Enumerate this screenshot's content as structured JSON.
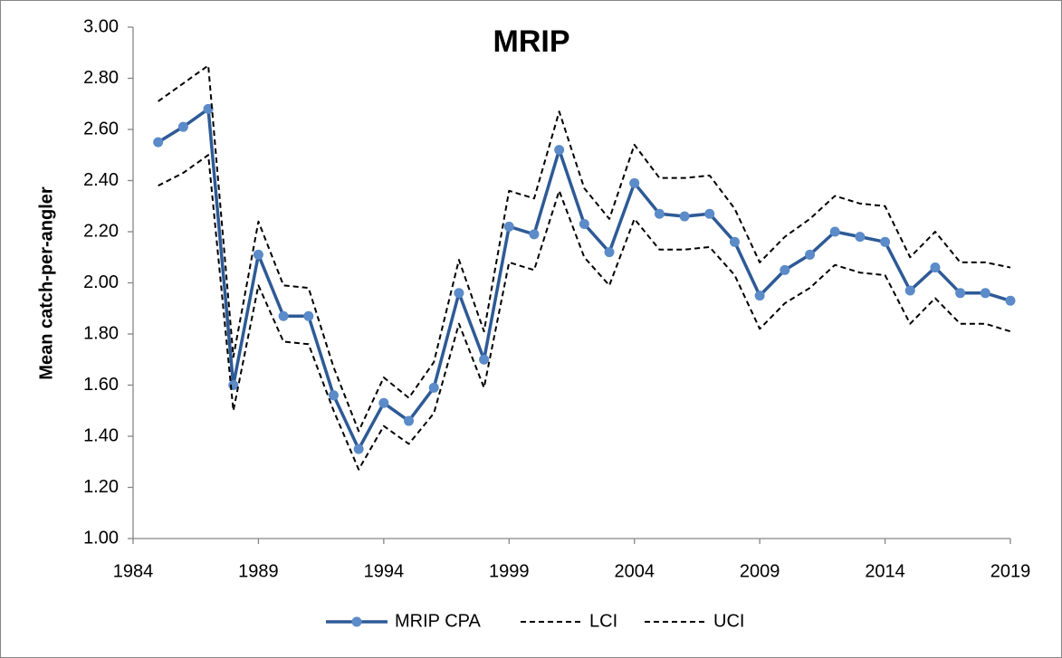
{
  "chart_data": {
    "type": "line",
    "title": "MRIP",
    "y_label": "Mean catch-per-angler",
    "x": [
      1985,
      1986,
      1987,
      1988,
      1989,
      1990,
      1991,
      1992,
      1993,
      1994,
      1995,
      1996,
      1997,
      1998,
      1999,
      2000,
      2001,
      2002,
      2003,
      2004,
      2005,
      2006,
      2007,
      2008,
      2009,
      2010,
      2011,
      2012,
      2013,
      2014,
      2015,
      2016,
      2017,
      2018,
      2019
    ],
    "series": [
      {
        "name": "MRIP CPA",
        "color": "#2e5a96",
        "marker_color": "#5b8bc8",
        "markers": true,
        "dashed": false,
        "values": [
          2.55,
          2.61,
          2.68,
          1.6,
          2.11,
          1.87,
          1.87,
          1.56,
          1.35,
          1.53,
          1.46,
          1.59,
          1.96,
          1.7,
          2.22,
          2.19,
          2.52,
          2.23,
          2.12,
          2.39,
          2.27,
          2.26,
          2.27,
          2.16,
          1.95,
          2.05,
          2.11,
          2.2,
          2.18,
          2.16,
          1.97,
          2.06,
          1.96,
          1.96,
          1.93
        ]
      },
      {
        "name": "LCI",
        "color": "#000000",
        "markers": false,
        "dashed": true,
        "values": [
          2.38,
          2.43,
          2.5,
          1.5,
          1.99,
          1.77,
          1.76,
          1.5,
          1.27,
          1.44,
          1.37,
          1.49,
          1.84,
          1.59,
          2.08,
          2.05,
          2.36,
          2.1,
          1.99,
          2.25,
          2.13,
          2.13,
          2.14,
          2.03,
          1.82,
          1.92,
          1.98,
          2.07,
          2.04,
          2.03,
          1.84,
          1.94,
          1.84,
          1.84,
          1.81
        ]
      },
      {
        "name": "UCI",
        "color": "#000000",
        "markers": false,
        "dashed": true,
        "values": [
          2.71,
          2.78,
          2.85,
          1.71,
          2.24,
          1.99,
          1.98,
          1.67,
          1.42,
          1.63,
          1.55,
          1.69,
          2.09,
          1.81,
          2.36,
          2.33,
          2.67,
          2.37,
          2.25,
          2.54,
          2.41,
          2.41,
          2.42,
          2.29,
          2.08,
          2.18,
          2.25,
          2.34,
          2.31,
          2.3,
          2.1,
          2.2,
          2.08,
          2.08,
          2.06
        ]
      }
    ],
    "xlim": [
      1984,
      2019
    ],
    "xticks": [
      1984,
      1989,
      1994,
      1999,
      2004,
      2009,
      2014,
      2019
    ],
    "ylim": [
      1,
      3
    ],
    "yticks": [
      {
        "value": 1,
        "label": "1.00"
      },
      {
        "value": 1.2,
        "label": "1.20"
      },
      {
        "value": 1.4,
        "label": "1.40"
      },
      {
        "value": 1.6,
        "label": "1.60"
      },
      {
        "value": 1.8,
        "label": "1.80"
      },
      {
        "value": 2,
        "label": "2.00"
      },
      {
        "value": 2.2,
        "label": "2.20"
      },
      {
        "value": 2.4,
        "label": "2.40"
      },
      {
        "value": 2.6,
        "label": "2.60"
      },
      {
        "value": 2.8,
        "label": "2.80"
      },
      {
        "value": 3,
        "label": "3.00"
      }
    ],
    "grid": false,
    "legend": "bottom"
  }
}
